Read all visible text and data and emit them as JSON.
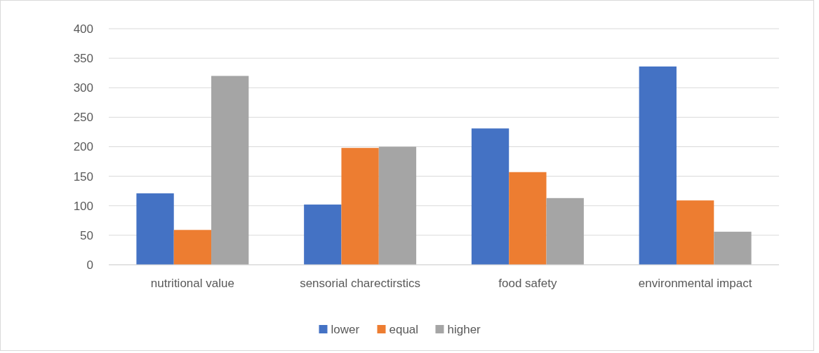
{
  "chart_data": {
    "type": "bar",
    "categories": [
      "nutritional value",
      "sensorial charectirstics",
      "food safety",
      "environmental impact"
    ],
    "series": [
      {
        "name": "lower",
        "color": "#4472c4",
        "values": [
          121,
          102,
          231,
          336
        ]
      },
      {
        "name": "equal",
        "color": "#ed7d31",
        "values": [
          59,
          198,
          157,
          109
        ]
      },
      {
        "name": "higher",
        "color": "#a5a5a5",
        "values": [
          320,
          200,
          113,
          56
        ]
      }
    ],
    "ylim": [
      0,
      400
    ],
    "yticks": [
      0,
      50,
      100,
      150,
      200,
      250,
      300,
      350,
      400
    ],
    "grid": "y",
    "legend": "bottom"
  }
}
